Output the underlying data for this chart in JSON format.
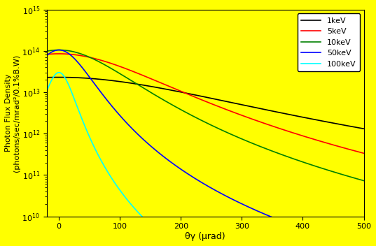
{
  "title": "",
  "xlabel": "θγ (μrad)",
  "ylabel": "Photon Flux Density\n(photons/sec/mrad²/0.1%B.W)",
  "background_color": "#ffff00",
  "xlim": [
    -20,
    500
  ],
  "ylim_log": [
    10,
    15
  ],
  "curves": [
    {
      "label": "1keV",
      "color": "black",
      "peak": 23000000000000.0,
      "theta_c": 280,
      "n_power": 2.0
    },
    {
      "label": "5keV",
      "color": "red",
      "peak": 85000000000000.0,
      "theta_c": 175,
      "n_power": 2.5
    },
    {
      "label": "10keV",
      "color": "green",
      "peak": 105000000000000.0,
      "theta_c": 120,
      "n_power": 2.5
    },
    {
      "label": "50keV",
      "color": "blue",
      "peak": 105000000000000.0,
      "theta_c": 55,
      "n_power": 2.5
    },
    {
      "label": "100keV",
      "color": "cyan",
      "peak": 30000000000000.0,
      "theta_c": 28,
      "n_power": 2.5
    }
  ],
  "legend_labels": [
    "1keV",
    "5keV",
    "10keV",
    "50keV",
    "100keV"
  ],
  "legend_colors": [
    "black",
    "red",
    "green",
    "blue",
    "cyan"
  ],
  "figsize": [
    5.37,
    3.52
  ],
  "dpi": 100
}
